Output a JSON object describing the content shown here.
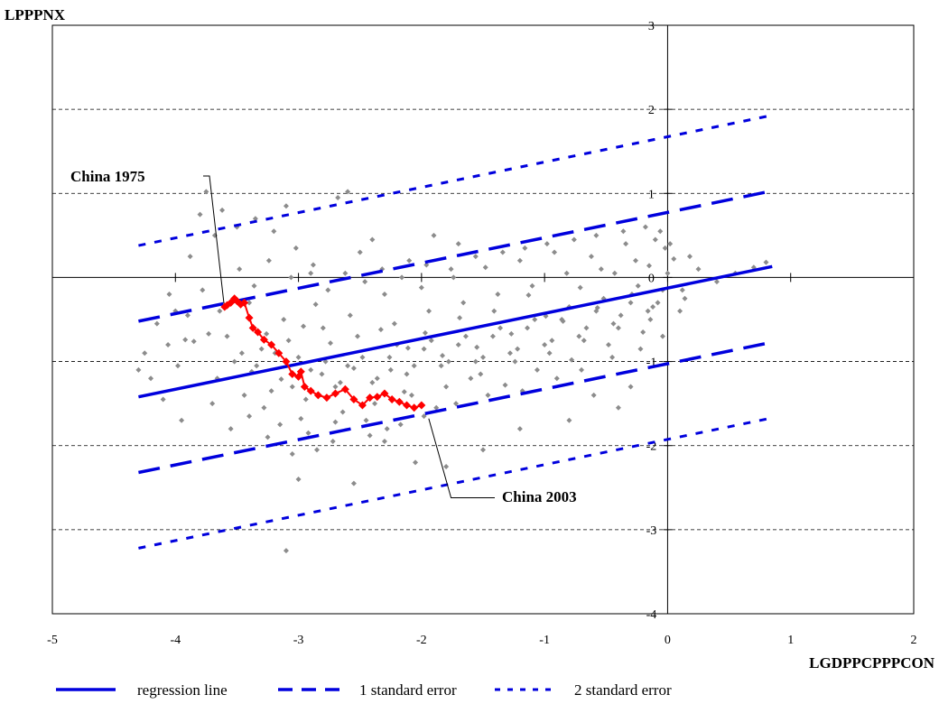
{
  "chart_data": {
    "type": "scatter",
    "title": "",
    "xlabel": "LGDPPCPPPCON",
    "ylabel": "LPPPNX",
    "xlim": [
      -5,
      2
    ],
    "ylim": [
      -4,
      3
    ],
    "x_ticks": [
      -5,
      -4,
      -3,
      -2,
      -1,
      0,
      1,
      2
    ],
    "y_ticks": [
      -4,
      -3,
      -2,
      -1,
      0,
      1,
      2,
      3
    ],
    "grid": "horizontal dashed",
    "legend_position": "bottom",
    "colors": {
      "points": "#8c8c8c",
      "china": "#ff0000",
      "lines": "#0000dd"
    },
    "regression": {
      "slope": 0.3,
      "intercept": -0.125
    },
    "lines": [
      {
        "name": "regression line",
        "style": "solid",
        "x": [
          -4.3,
          0.85
        ],
        "y": [
          -1.42,
          0.13
        ]
      },
      {
        "name": "1 standard error",
        "style": "dashed",
        "x": [
          -4.3,
          0.85
        ],
        "y": [
          -0.52,
          1.03
        ]
      },
      {
        "name": "1 standard error",
        "style": "dashed",
        "x": [
          -4.3,
          0.85
        ],
        "y": [
          -2.32,
          -0.77
        ]
      },
      {
        "name": "2 standard error",
        "style": "dotted",
        "x": [
          -4.3,
          0.85
        ],
        "y": [
          0.38,
          1.93
        ]
      },
      {
        "name": "2 standard error",
        "style": "dotted",
        "x": [
          -4.3,
          0.85
        ],
        "y": [
          -3.22,
          -1.67
        ]
      }
    ],
    "china_series": {
      "x": [
        -3.6,
        -3.58,
        -3.55,
        -3.52,
        -3.5,
        -3.47,
        -3.44,
        -3.4,
        -3.37,
        -3.33,
        -3.28,
        -3.22,
        -3.16,
        -3.1,
        -3.05,
        -3.0,
        -2.98,
        -2.95,
        -2.9,
        -2.84,
        -2.77,
        -2.7,
        -2.62,
        -2.55,
        -2.48,
        -2.42,
        -2.36,
        -2.3,
        -2.24,
        -2.18,
        -2.12,
        -2.06,
        -2.0
      ],
      "y": [
        -0.35,
        -0.33,
        -0.3,
        -0.25,
        -0.28,
        -0.32,
        -0.3,
        -0.48,
        -0.6,
        -0.65,
        -0.74,
        -0.8,
        -0.9,
        -1.0,
        -1.15,
        -1.18,
        -1.12,
        -1.3,
        -1.35,
        -1.4,
        -1.43,
        -1.38,
        -1.33,
        -1.45,
        -1.52,
        -1.43,
        -1.42,
        -1.38,
        -1.45,
        -1.48,
        -1.52,
        -1.55,
        -1.52
      ]
    },
    "annotations": [
      {
        "text": "China 1975",
        "x": -3.6,
        "y": -0.35
      },
      {
        "text": "China 2003",
        "x": -2.0,
        "y": -1.55
      }
    ],
    "scatter_points": [
      [
        -4.06,
        -0.8
      ],
      [
        -3.38,
        -1.12
      ],
      [
        -3.26,
        -0.67
      ],
      [
        -3.14,
        -1.21
      ],
      [
        -3.92,
        -0.74
      ],
      [
        -3.73,
        -0.67
      ],
      [
        -2.17,
        -1.75
      ],
      [
        -2.96,
        -0.58
      ],
      [
        -2.74,
        -0.78
      ],
      [
        -3.85,
        -0.76
      ],
      [
        -3.19,
        -0.9
      ],
      [
        -2.81,
        -1.15
      ],
      [
        -2.55,
        -1.08
      ],
      [
        -2.33,
        -0.62
      ],
      [
        -2.25,
        -1.1
      ],
      [
        -2.11,
        -0.84
      ],
      [
        -1.97,
        -0.66
      ],
      [
        -1.83,
        -0.93
      ],
      [
        -1.69,
        -0.48
      ],
      [
        -1.55,
        -0.83
      ],
      [
        -1.41,
        -0.4
      ],
      [
        -1.27,
        -0.67
      ],
      [
        -1.13,
        -0.21
      ],
      [
        -0.99,
        -0.46
      ],
      [
        -0.85,
        -0.52
      ],
      [
        -0.71,
        -0.12
      ],
      [
        -0.57,
        -0.36
      ],
      [
        -0.43,
        0.05
      ],
      [
        -0.29,
        -0.2
      ],
      [
        -0.15,
        0.14
      ],
      [
        -0.08,
        -0.3
      ],
      [
        0.05,
        0.22
      ],
      [
        -3.52,
        -1.0
      ],
      [
        -3.4,
        -0.3
      ],
      [
        -3.28,
        -1.55
      ],
      [
        -3.12,
        -0.5
      ],
      [
        -2.98,
        -1.68
      ],
      [
        -2.86,
        -0.32
      ],
      [
        -2.7,
        -1.72
      ],
      [
        -2.58,
        -0.45
      ],
      [
        -2.42,
        -1.88
      ],
      [
        -2.3,
        -0.2
      ],
      [
        -2.14,
        -1.36
      ],
      [
        -2.0,
        -0.12
      ],
      [
        -1.88,
        -1.55
      ],
      [
        -1.74,
        0.0
      ],
      [
        -1.6,
        -1.2
      ],
      [
        -1.48,
        0.12
      ],
      [
        -1.32,
        -1.28
      ],
      [
        -1.2,
        0.2
      ],
      [
        -1.06,
        -1.1
      ],
      [
        -0.92,
        0.3
      ],
      [
        -0.78,
        -0.98
      ],
      [
        -0.62,
        0.25
      ],
      [
        -0.48,
        -0.8
      ],
      [
        -0.34,
        0.4
      ],
      [
        -0.2,
        -0.65
      ],
      [
        -0.06,
        0.55
      ],
      [
        0.1,
        -0.4
      ],
      [
        0.25,
        0.1
      ],
      [
        0.4,
        -0.05
      ],
      [
        0.55,
        0.05
      ],
      [
        0.7,
        0.12
      ],
      [
        0.8,
        0.18
      ],
      [
        -4.2,
        -1.2
      ],
      [
        -4.1,
        -1.45
      ],
      [
        -4.0,
        -0.4
      ],
      [
        -3.95,
        -1.7
      ],
      [
        -3.88,
        0.25
      ],
      [
        -3.8,
        0.75
      ],
      [
        -3.75,
        1.02
      ],
      [
        -3.68,
        0.5
      ],
      [
        -3.62,
        0.8
      ],
      [
        -3.5,
        0.6
      ],
      [
        -3.35,
        0.7
      ],
      [
        -3.2,
        0.55
      ],
      [
        -3.1,
        0.85
      ],
      [
        -3.02,
        0.35
      ],
      [
        -2.9,
        0.05
      ],
      [
        -2.68,
        0.95
      ],
      [
        -2.6,
        1.02
      ],
      [
        -2.5,
        0.3
      ],
      [
        -2.4,
        0.45
      ],
      [
        -2.1,
        0.2
      ],
      [
        -1.9,
        0.5
      ],
      [
        -1.7,
        0.4
      ],
      [
        -3.1,
        -3.25
      ],
      [
        -3.05,
        -2.1
      ],
      [
        -3.0,
        -2.4
      ],
      [
        -2.85,
        -2.05
      ],
      [
        -2.55,
        -2.45
      ],
      [
        -2.3,
        -1.95
      ],
      [
        -2.05,
        -2.2
      ],
      [
        -1.8,
        -2.25
      ],
      [
        -1.5,
        -2.05
      ],
      [
        -1.2,
        -1.8
      ],
      [
        -0.8,
        -1.7
      ],
      [
        -0.6,
        -1.4
      ],
      [
        -0.4,
        -1.55
      ],
      [
        -0.3,
        -1.3
      ],
      [
        -4.3,
        -1.1
      ],
      [
        -4.25,
        -0.9
      ],
      [
        -3.98,
        -1.05
      ],
      [
        -3.66,
        -1.2
      ],
      [
        -3.44,
        -1.4
      ],
      [
        -3.3,
        -0.85
      ],
      [
        -3.05,
        -1.3
      ],
      [
        -2.78,
        -1.0
      ],
      [
        -2.66,
        -1.25
      ],
      [
        -2.48,
        -0.95
      ],
      [
        -2.36,
        -1.2
      ],
      [
        -2.2,
        -0.8
      ],
      [
        -2.06,
        -1.05
      ],
      [
        -1.92,
        -0.75
      ],
      [
        -1.78,
        -1.0
      ],
      [
        -1.64,
        -0.7
      ],
      [
        -1.5,
        -0.95
      ],
      [
        -1.36,
        -0.6
      ],
      [
        -1.22,
        -0.85
      ],
      [
        -1.08,
        -0.5
      ],
      [
        -0.94,
        -0.75
      ],
      [
        -0.8,
        -0.35
      ],
      [
        -0.66,
        -0.6
      ],
      [
        -0.52,
        -0.25
      ],
      [
        -0.38,
        -0.45
      ],
      [
        -0.24,
        -0.1
      ],
      [
        -0.12,
        -0.35
      ],
      [
        0.0,
        0.05
      ],
      [
        0.12,
        -0.15
      ],
      [
        -3.58,
        -0.7
      ],
      [
        -3.46,
        -0.9
      ],
      [
        -3.34,
        -1.05
      ],
      [
        -3.22,
        -1.35
      ],
      [
        -3.08,
        -0.75
      ],
      [
        -2.94,
        -1.45
      ],
      [
        -2.8,
        -0.6
      ],
      [
        -2.64,
        -1.6
      ],
      [
        -2.52,
        -0.7
      ],
      [
        -2.38,
        -1.5
      ],
      [
        -2.22,
        -0.55
      ],
      [
        -2.08,
        -1.4
      ],
      [
        -1.94,
        -0.4
      ],
      [
        -1.8,
        -1.3
      ],
      [
        -1.66,
        -0.3
      ],
      [
        -1.52,
        -1.15
      ],
      [
        -1.38,
        -0.2
      ],
      [
        -1.24,
        -1.0
      ],
      [
        -1.1,
        -0.1
      ],
      [
        -0.96,
        -0.9
      ],
      [
        -0.82,
        0.05
      ],
      [
        -0.68,
        -0.75
      ],
      [
        -0.54,
        0.1
      ],
      [
        -0.4,
        -0.6
      ],
      [
        -0.26,
        0.2
      ],
      [
        -0.14,
        -0.5
      ],
      [
        -0.02,
        0.35
      ],
      [
        0.14,
        -0.25
      ],
      [
        -3.7,
        -1.5
      ],
      [
        -3.55,
        -1.8
      ],
      [
        -3.4,
        -1.65
      ],
      [
        -3.25,
        -1.9
      ],
      [
        -3.15,
        -1.75
      ],
      [
        -2.92,
        -1.85
      ],
      [
        -2.72,
        -1.95
      ],
      [
        -2.45,
        -1.7
      ],
      [
        -2.28,
        -1.8
      ],
      [
        -1.98,
        -1.65
      ],
      [
        -1.72,
        -1.5
      ],
      [
        -1.46,
        -1.4
      ],
      [
        -1.18,
        -1.35
      ],
      [
        -0.9,
        -1.2
      ],
      [
        -0.7,
        -1.1
      ],
      [
        -0.45,
        -0.95
      ],
      [
        -0.22,
        -0.85
      ],
      [
        -0.04,
        -0.7
      ],
      [
        -4.15,
        -0.55
      ],
      [
        -4.05,
        -0.2
      ],
      [
        -3.9,
        -0.45
      ],
      [
        -3.78,
        -0.15
      ],
      [
        -3.64,
        -0.4
      ],
      [
        -3.48,
        0.1
      ],
      [
        -3.36,
        -0.1
      ],
      [
        -3.24,
        0.2
      ],
      [
        -3.06,
        0.0
      ],
      [
        -2.88,
        0.15
      ],
      [
        -2.76,
        -0.15
      ],
      [
        -2.62,
        0.05
      ],
      [
        -2.46,
        -0.05
      ],
      [
        -2.32,
        0.1
      ],
      [
        -2.16,
        0.0
      ],
      [
        -1.96,
        0.15
      ],
      [
        -1.76,
        0.1
      ],
      [
        -1.56,
        0.25
      ],
      [
        -1.34,
        0.3
      ],
      [
        -1.16,
        0.35
      ],
      [
        -0.98,
        0.4
      ],
      [
        -0.76,
        0.45
      ],
      [
        -0.58,
        0.5
      ],
      [
        -0.36,
        0.55
      ],
      [
        -0.18,
        0.6
      ],
      [
        -0.1,
        0.45
      ],
      [
        0.02,
        0.4
      ],
      [
        0.18,
        0.25
      ],
      [
        -3.0,
        -0.95
      ],
      [
        -2.9,
        -1.1
      ],
      [
        -2.7,
        -1.3
      ],
      [
        -2.6,
        -1.05
      ],
      [
        -2.4,
        -1.25
      ],
      [
        -2.26,
        -0.95
      ],
      [
        -2.12,
        -1.15
      ],
      [
        -1.98,
        -0.85
      ],
      [
        -1.84,
        -1.05
      ],
      [
        -1.7,
        -0.8
      ],
      [
        -1.56,
        -1.0
      ],
      [
        -1.42,
        -0.7
      ],
      [
        -1.28,
        -0.9
      ],
      [
        -1.14,
        -0.6
      ],
      [
        -1.0,
        -0.8
      ],
      [
        -0.86,
        -0.5
      ],
      [
        -0.72,
        -0.7
      ],
      [
        -0.58,
        -0.4
      ],
      [
        -0.44,
        -0.55
      ],
      [
        -0.3,
        -0.3
      ],
      [
        -0.16,
        -0.4
      ],
      [
        -0.04,
        -0.15
      ]
    ]
  },
  "legend": {
    "regression": "regression line",
    "se1": "1 standard error",
    "se2": "2 standard error"
  }
}
